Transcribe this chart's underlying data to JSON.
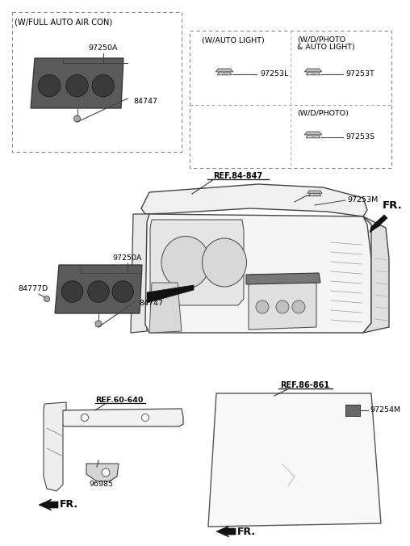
{
  "bg_color": "#ffffff",
  "parts": {
    "p97250A": "97250A",
    "p84747": "84747",
    "p97253L": "97253L",
    "p97253T": "97253T",
    "p97253S": "97253S",
    "p97253M": "97253M",
    "p84777D": "84777D",
    "p96985": "96985",
    "p97254M": "97254M",
    "ref84847": "REF.84-847",
    "ref60640": "REF.60-640",
    "ref86861": "REF.86-861"
  },
  "labels": {
    "box1": "(W/FULL AUTO AIR CON)",
    "box2": "(W/AUTO LIGHT)",
    "box3_1": "(W/D/PHOTO",
    "box3_2": "& AUTO LIGHT)",
    "box4": "(W/D/PHOTO)",
    "fr": "FR."
  }
}
